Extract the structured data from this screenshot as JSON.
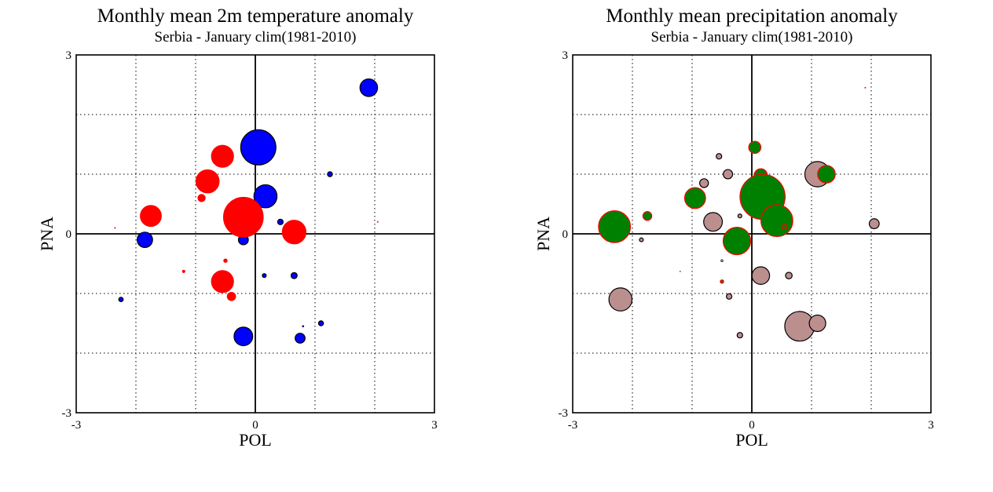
{
  "chart_data": [
    {
      "type": "scatter",
      "title": "Monthly mean 2m temperature anomaly",
      "subtitle": "Serbia - January  clim(1981-2010)",
      "xlabel": "POL",
      "ylabel": "PNA",
      "xlim": [
        -3,
        3
      ],
      "ylim": [
        -3,
        3
      ],
      "xticks": [
        "-3",
        "3"
      ],
      "yticks": [
        "-3",
        "0",
        "3"
      ],
      "xtick_origin": "0",
      "grid": "dotted",
      "series": [
        {
          "color": "#0000ff",
          "edge": "#000000",
          "points": [
            {
              "x": 1.9,
              "y": 2.45,
              "r": 1.6
            },
            {
              "x": 0.05,
              "y": 1.45,
              "r": 3.2
            },
            {
              "x": 1.25,
              "y": 1.0,
              "r": 0.45
            },
            {
              "x": 0.17,
              "y": 0.63,
              "r": 2.1
            },
            {
              "x": 0.42,
              "y": 0.2,
              "r": 0.5
            },
            {
              "x": -0.2,
              "y": -0.1,
              "r": 0.9
            },
            {
              "x": -1.85,
              "y": -0.1,
              "r": 1.4
            },
            {
              "x": 0.15,
              "y": -0.7,
              "r": 0.35
            },
            {
              "x": 0.65,
              "y": -0.7,
              "r": 0.55
            },
            {
              "x": -2.25,
              "y": -1.1,
              "r": 0.4
            },
            {
              "x": 1.1,
              "y": -1.5,
              "r": 0.45
            },
            {
              "x": 0.8,
              "y": -1.55,
              "r": 0.15
            },
            {
              "x": -0.2,
              "y": -1.72,
              "r": 1.7
            },
            {
              "x": 0.75,
              "y": -1.75,
              "r": 0.9
            }
          ]
        },
        {
          "color": "#ff0000",
          "edge": "#ff0000",
          "points": [
            {
              "x": -0.55,
              "y": 1.3,
              "r": 2.0
            },
            {
              "x": -0.8,
              "y": 0.88,
              "r": 2.1
            },
            {
              "x": -0.9,
              "y": 0.6,
              "r": 0.65
            },
            {
              "x": -1.75,
              "y": 0.3,
              "r": 1.9
            },
            {
              "x": -0.2,
              "y": 0.28,
              "r": 3.6
            },
            {
              "x": 0.65,
              "y": 0.03,
              "r": 2.15
            },
            {
              "x": -2.35,
              "y": 0.1,
              "r": 0.1
            },
            {
              "x": -0.5,
              "y": -0.45,
              "r": 0.3
            },
            {
              "x": -1.2,
              "y": -0.63,
              "r": 0.25
            },
            {
              "x": -0.55,
              "y": -0.8,
              "r": 2.0
            },
            {
              "x": -0.4,
              "y": -1.05,
              "r": 0.75
            },
            {
              "x": 2.05,
              "y": 0.2,
              "r": 0.1
            }
          ]
        }
      ]
    },
    {
      "type": "scatter",
      "title": "Monthly mean precipitation anomaly",
      "subtitle": "Serbia - January  clim(1981-2010)",
      "xlabel": "POL",
      "ylabel": "PNA",
      "xlim": [
        -3,
        3
      ],
      "ylim": [
        -3,
        3
      ],
      "xticks": [
        "-3",
        "3"
      ],
      "yticks": [
        "-3",
        "0",
        "3"
      ],
      "xtick_origin": "0",
      "grid": "dotted",
      "series": [
        {
          "color": "#bc8f8f",
          "edge": "#000000",
          "points": [
            {
              "x": -0.55,
              "y": 1.3,
              "r": 0.5
            },
            {
              "x": -0.4,
              "y": 1.0,
              "r": 0.85
            },
            {
              "x": -0.8,
              "y": 0.85,
              "r": 0.8
            },
            {
              "x": 1.1,
              "y": 1.0,
              "r": 2.3
            },
            {
              "x": -0.65,
              "y": 0.2,
              "r": 1.7
            },
            {
              "x": -0.2,
              "y": 0.3,
              "r": 0.35
            },
            {
              "x": 2.05,
              "y": 0.17,
              "r": 0.9
            },
            {
              "x": -1.85,
              "y": -0.1,
              "r": 0.35
            },
            {
              "x": -0.5,
              "y": -0.45,
              "r": 0.2
            },
            {
              "x": 0.15,
              "y": -0.7,
              "r": 1.6
            },
            {
              "x": 0.62,
              "y": -0.7,
              "r": 0.6
            },
            {
              "x": -2.2,
              "y": -1.1,
              "r": 2.1
            },
            {
              "x": -0.38,
              "y": -1.05,
              "r": 0.5
            },
            {
              "x": 0.8,
              "y": -1.55,
              "r": 2.7
            },
            {
              "x": 1.1,
              "y": -1.5,
              "r": 1.5
            },
            {
              "x": -0.2,
              "y": -1.7,
              "r": 0.5
            }
          ]
        },
        {
          "color": "#008000",
          "edge": "#ff0000",
          "points": [
            {
              "x": 0.05,
              "y": 1.45,
              "r": 1.1
            },
            {
              "x": 0.15,
              "y": 0.98,
              "r": 1.2
            },
            {
              "x": 1.25,
              "y": 1.0,
              "r": 1.6
            },
            {
              "x": -0.95,
              "y": 0.6,
              "r": 1.9
            },
            {
              "x": 0.18,
              "y": 0.62,
              "r": 4.1
            },
            {
              "x": -1.75,
              "y": 0.3,
              "r": 0.8
            },
            {
              "x": -2.3,
              "y": 0.12,
              "r": 2.9
            },
            {
              "x": 0.42,
              "y": 0.22,
              "r": 2.9
            },
            {
              "x": -0.25,
              "y": -0.12,
              "r": 2.5
            },
            {
              "x": 0.55,
              "y": 0.12,
              "r": 0.45
            },
            {
              "x": -0.5,
              "y": -0.8,
              "r": 0.3
            },
            {
              "x": -1.2,
              "y": -0.63,
              "r": 0.05
            },
            {
              "x": 1.9,
              "y": 2.45,
              "r": 0.1
            }
          ]
        }
      ]
    }
  ]
}
